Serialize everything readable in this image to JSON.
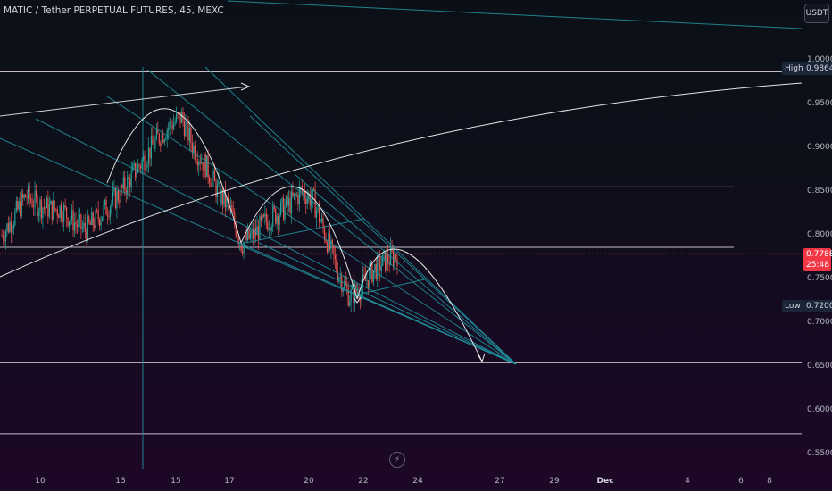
{
  "header": {
    "title": "MATIC / Tether PERPETUAL FUTURES, 45, MEXC",
    "currency_button": "USDT"
  },
  "colors": {
    "up": "#26a69a",
    "down": "#ef5350",
    "drawing_line": "#1f8f9a",
    "arc": "#e6e6e6",
    "level": "#e8d9e6",
    "price_tag": "#f23645",
    "high_low_tag": "#1b2538"
  },
  "chart_data": {
    "type": "candlestick",
    "title": "MATIC / Tether PERPETUAL FUTURES, 45, MEXC",
    "y_axis": {
      "ticks": [
        "1.0000",
        "0.9500",
        "0.9000",
        "0.8500",
        "0.8000",
        "0.7500",
        "0.7000",
        "0.6500",
        "0.6000",
        "0.5500"
      ],
      "range": [
        0.53,
        1.04
      ]
    },
    "x_axis": {
      "ticks": [
        "10",
        "13",
        "15",
        "17",
        "20",
        "22",
        "24",
        "27",
        "29",
        "Dec",
        "4",
        "6",
        "8"
      ]
    },
    "current_price": "0.7788",
    "countdown": "25:48",
    "high_label": "High",
    "high": "0.9864",
    "low_label": "Low",
    "low": "0.7200",
    "price_path": [
      [
        0,
        0.8
      ],
      [
        1,
        0.82
      ],
      [
        2,
        0.845
      ],
      [
        3,
        0.835
      ],
      [
        4,
        0.83
      ],
      [
        5,
        0.83
      ],
      [
        6,
        0.815
      ],
      [
        7,
        0.805
      ],
      [
        8,
        0.82
      ],
      [
        9,
        0.835
      ],
      [
        10,
        0.85
      ],
      [
        11,
        0.87
      ],
      [
        12,
        0.89
      ],
      [
        13,
        0.91
      ],
      [
        14,
        0.925
      ],
      [
        15,
        0.935
      ],
      [
        16,
        0.9
      ],
      [
        17,
        0.88
      ],
      [
        18,
        0.85
      ],
      [
        19,
        0.83
      ],
      [
        20,
        0.79
      ],
      [
        21,
        0.8
      ],
      [
        22,
        0.815
      ],
      [
        23,
        0.825
      ],
      [
        24,
        0.835
      ],
      [
        25,
        0.85
      ],
      [
        26,
        0.84
      ],
      [
        27,
        0.8
      ],
      [
        28,
        0.76
      ],
      [
        29,
        0.73
      ],
      [
        30,
        0.74
      ],
      [
        31,
        0.76
      ],
      [
        32,
        0.77
      ],
      [
        33,
        0.778
      ]
    ],
    "levels": [
      "0.9864",
      "0.8550",
      "0.7860",
      "0.6540",
      "0.5730"
    ],
    "annotations": "trend lines, fan lines and arc projections"
  }
}
